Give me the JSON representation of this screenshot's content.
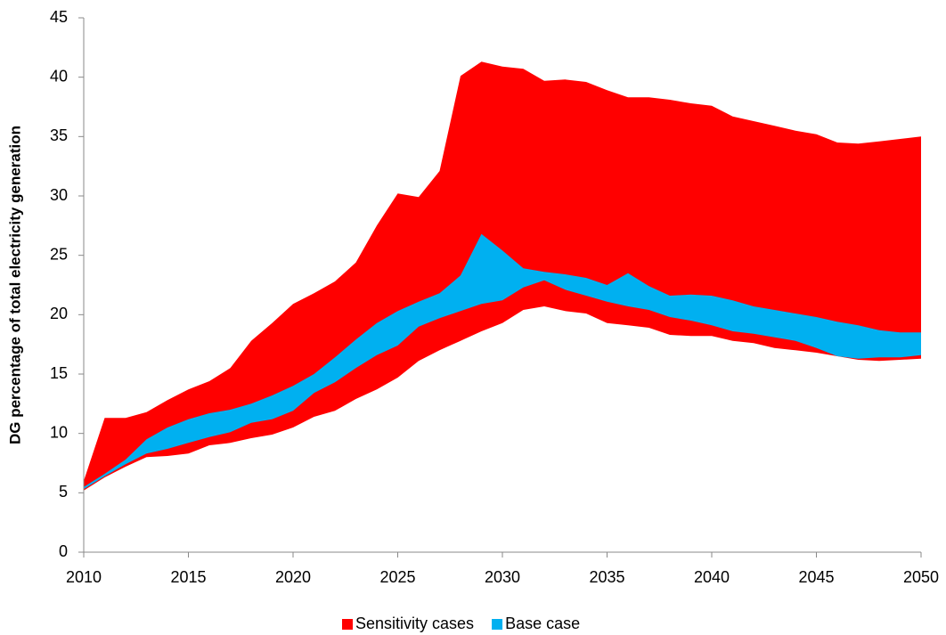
{
  "chart_data": {
    "type": "range-area",
    "y_label": "DG percentage of total electricity generation",
    "x": [
      2010,
      2011,
      2012,
      2013,
      2014,
      2015,
      2016,
      2017,
      2018,
      2019,
      2020,
      2021,
      2022,
      2023,
      2024,
      2025,
      2026,
      2027,
      2028,
      2029,
      2030,
      2031,
      2032,
      2033,
      2034,
      2035,
      2036,
      2037,
      2038,
      2039,
      2040,
      2041,
      2042,
      2043,
      2044,
      2045,
      2046,
      2047,
      2048,
      2049,
      2050
    ],
    "series": [
      {
        "name": "Sensitivity cases",
        "color": "#ff0000",
        "low": [
          5.2,
          6.3,
          7.2,
          8.0,
          8.1,
          8.3,
          9.0,
          9.2,
          9.6,
          9.9,
          10.5,
          11.4,
          11.9,
          12.9,
          13.7,
          14.7,
          16.1,
          17.0,
          17.8,
          18.6,
          19.3,
          20.4,
          20.7,
          20.3,
          20.1,
          19.3,
          19.1,
          18.9,
          18.3,
          18.2,
          18.2,
          17.8,
          17.6,
          17.2,
          17.0,
          16.8,
          16.5,
          16.2,
          16.1,
          16.2,
          16.3
        ],
        "high": [
          6.0,
          11.3,
          11.3,
          11.8,
          12.8,
          13.7,
          14.4,
          15.5,
          17.8,
          19.3,
          20.9,
          21.8,
          22.8,
          24.4,
          27.5,
          30.2,
          29.9,
          32.1,
          40.1,
          41.3,
          40.9,
          40.7,
          39.7,
          39.8,
          39.6,
          38.9,
          38.3,
          38.3,
          38.1,
          37.8,
          37.6,
          36.7,
          36.3,
          35.9,
          35.5,
          35.2,
          34.5,
          34.4,
          34.6,
          34.8,
          35.0
        ]
      },
      {
        "name": "Base case",
        "color": "#00b0f0",
        "low": [
          5.3,
          6.4,
          7.4,
          8.3,
          8.7,
          9.2,
          9.7,
          10.1,
          10.9,
          11.2,
          11.9,
          13.4,
          14.3,
          15.5,
          16.6,
          17.4,
          19.0,
          19.7,
          20.3,
          20.9,
          21.2,
          22.3,
          22.9,
          22.1,
          21.6,
          21.1,
          20.7,
          20.4,
          19.8,
          19.5,
          19.1,
          18.6,
          18.4,
          18.1,
          17.8,
          17.2,
          16.5,
          16.3,
          16.4,
          16.4,
          16.6
        ],
        "high": [
          5.5,
          6.6,
          7.8,
          9.5,
          10.5,
          11.2,
          11.7,
          12.0,
          12.5,
          13.2,
          14.0,
          15.0,
          16.4,
          17.9,
          19.3,
          20.3,
          21.1,
          21.8,
          23.3,
          26.8,
          25.4,
          23.9,
          23.6,
          23.4,
          23.1,
          22.5,
          23.5,
          22.4,
          21.6,
          21.7,
          21.6,
          21.2,
          20.7,
          20.4,
          20.1,
          19.8,
          19.4,
          19.1,
          18.7,
          18.5,
          18.5
        ]
      }
    ],
    "xlim": [
      2010,
      2050
    ],
    "xticks": [
      2010,
      2015,
      2020,
      2025,
      2030,
      2035,
      2040,
      2045,
      2050
    ],
    "ylim": [
      0,
      45
    ],
    "yticks": [
      0,
      5,
      10,
      15,
      20,
      25,
      30,
      35,
      40,
      45
    ],
    "legend": "bottom"
  }
}
